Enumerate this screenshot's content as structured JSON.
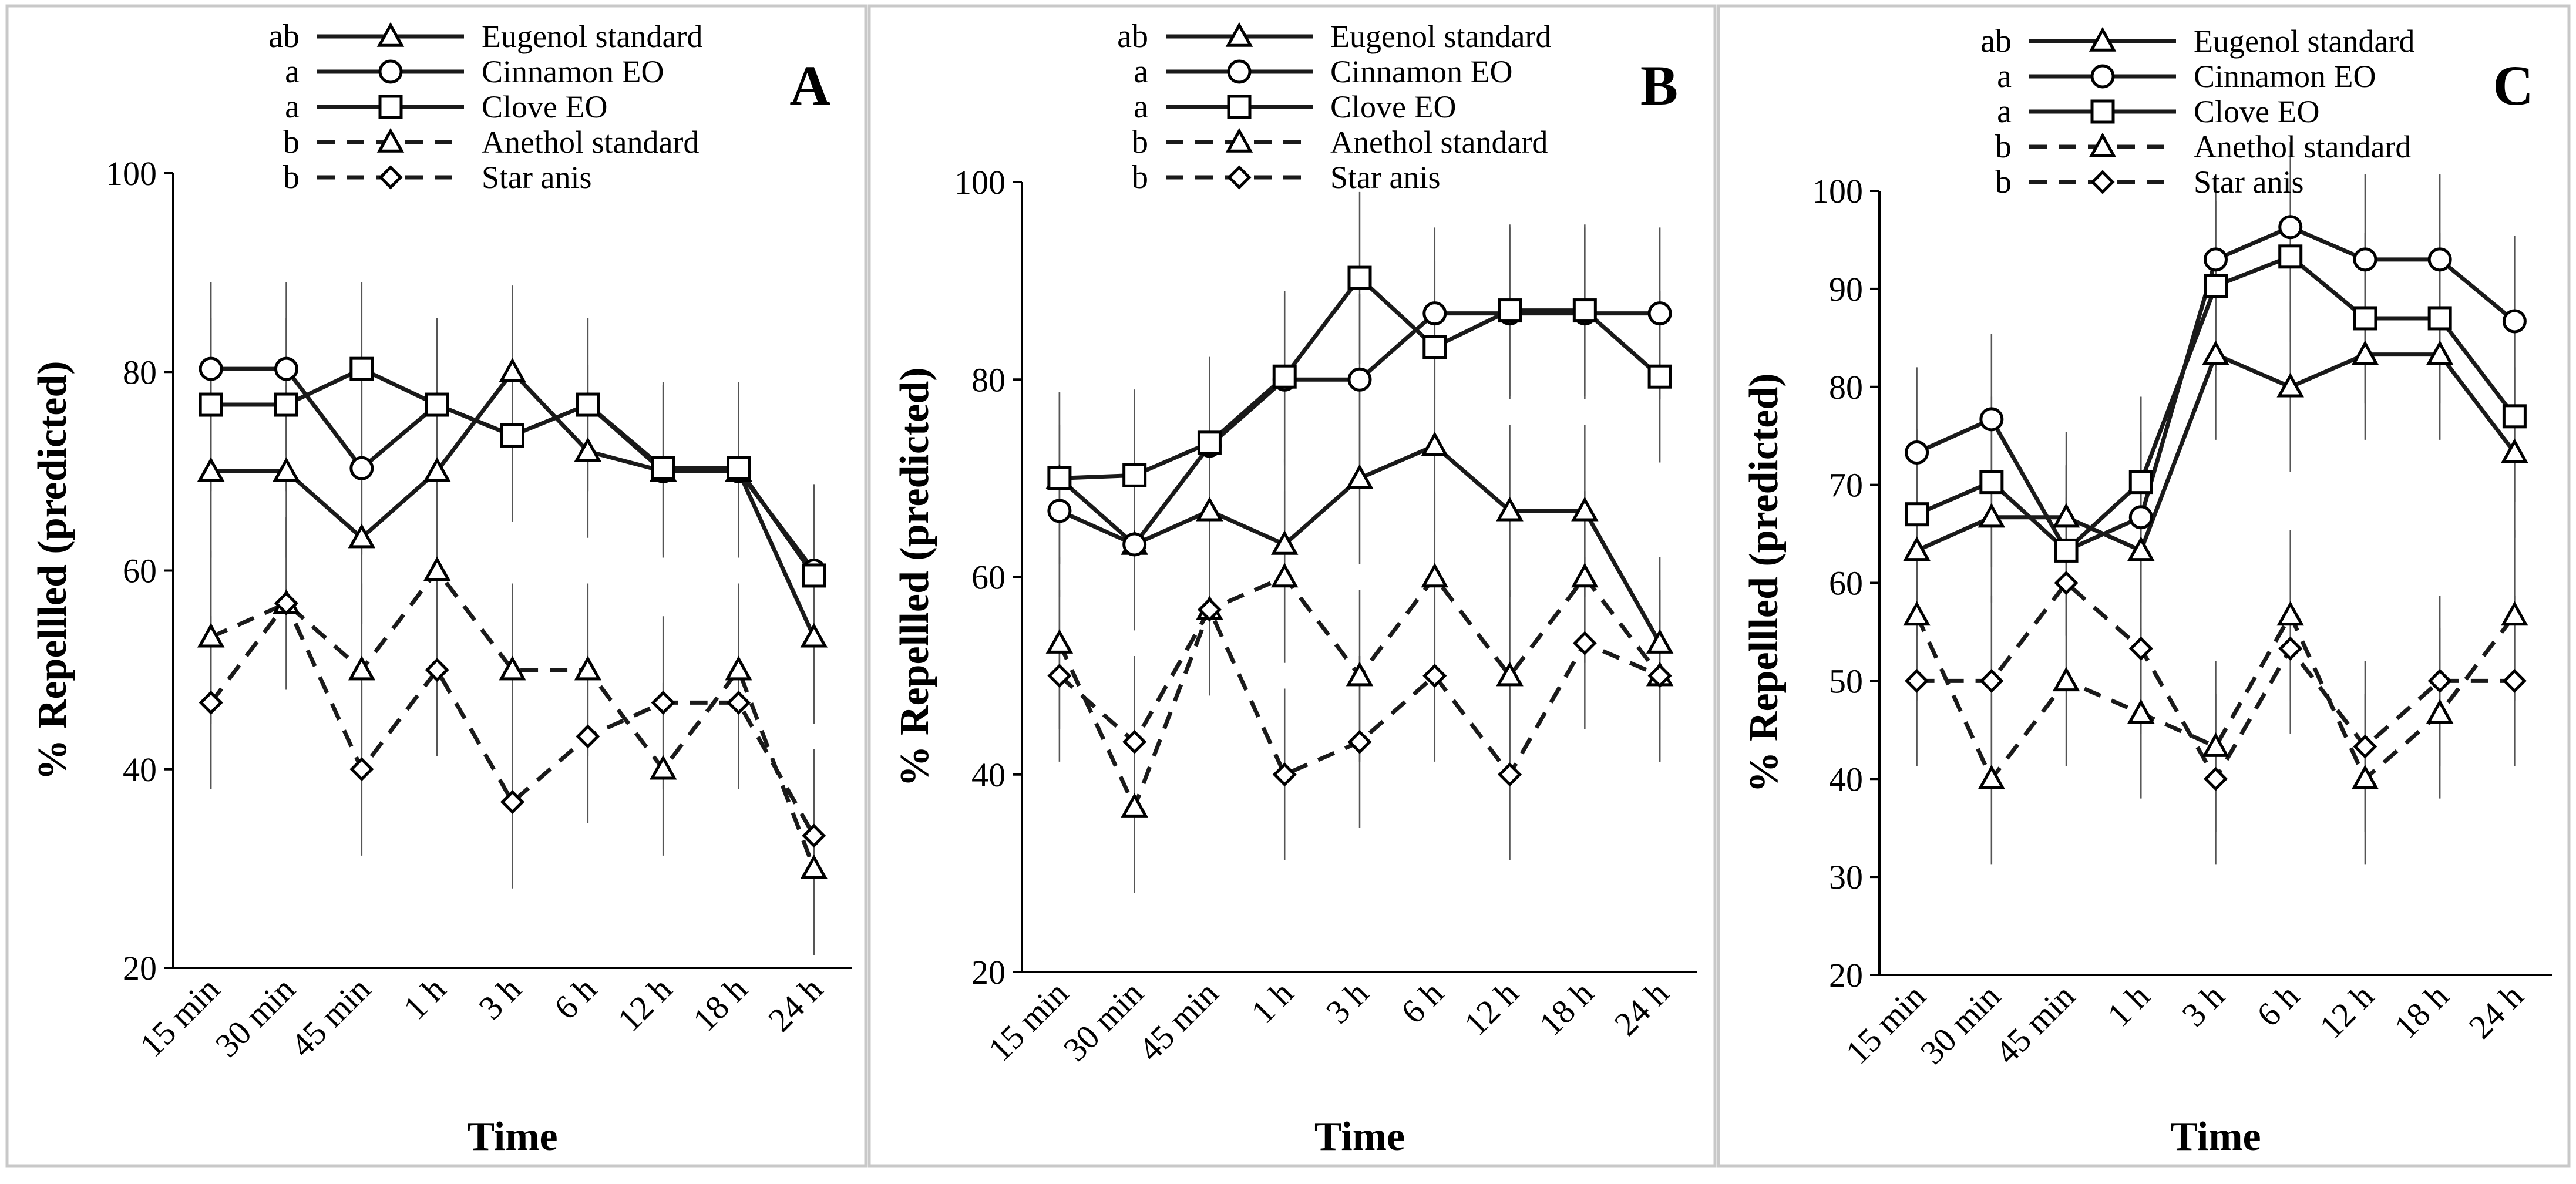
{
  "figure": {
    "xlabel": "Time",
    "ylabel": "% Repellled (predicted)"
  },
  "legend": [
    {
      "group": "ab",
      "label": "Eugenol standard",
      "marker": "triangle",
      "dash": "solid"
    },
    {
      "group": "a",
      "label": "Cinnamon EO",
      "marker": "circle",
      "dash": "solid"
    },
    {
      "group": "a",
      "label": "Clove EO",
      "marker": "square",
      "dash": "solid"
    },
    {
      "group": "b",
      "label": "Anethol standard",
      "marker": "triangle",
      "dash": "dashed"
    },
    {
      "group": "b",
      "label": "Star anis",
      "marker": "diamond",
      "dash": "dashed"
    }
  ],
  "chart_data": [
    {
      "type": "line",
      "panel": "A",
      "title": "",
      "xlabel": "Time",
      "ylabel": "% Repellled (predicted)",
      "categories": [
        "15 min",
        "30 min",
        "45 min",
        "1 h",
        "3 h",
        "6 h",
        "12 h",
        "18 h",
        "24 h"
      ],
      "ylim": [
        20,
        100
      ],
      "yticks": [
        20,
        40,
        60,
        80,
        100
      ],
      "error_bar": 8.7,
      "series": [
        {
          "name": "Eugenol standard",
          "values": [
            70,
            70,
            63.3,
            70,
            80,
            72,
            70,
            70,
            53.3
          ]
        },
        {
          "name": "Cinnamon EO",
          "values": [
            80.3,
            80.3,
            70.3,
            76.7,
            73.6,
            76.7,
            70,
            70,
            60
          ]
        },
        {
          "name": "Clove EO",
          "values": [
            76.7,
            76.7,
            80.3,
            76.7,
            73.6,
            76.7,
            70.3,
            70.3,
            59.5
          ]
        },
        {
          "name": "Anethol standard",
          "values": [
            53.3,
            56.7,
            50,
            60,
            50,
            50,
            40,
            50,
            30
          ]
        },
        {
          "name": "Star anis",
          "values": [
            46.7,
            56.7,
            40,
            50,
            36.7,
            43.3,
            46.7,
            46.7,
            33.3
          ]
        }
      ]
    },
    {
      "type": "line",
      "panel": "B",
      "title": "",
      "xlabel": "Time",
      "ylabel": "% Repellled (predicted)",
      "categories": [
        "15 min",
        "30 min",
        "45 min",
        "1 h",
        "3 h",
        "6 h",
        "12 h",
        "18 h",
        "24 h"
      ],
      "ylim": [
        20,
        100
      ],
      "yticks": [
        20,
        40,
        60,
        80,
        100
      ],
      "error_bar": 8.7,
      "series": [
        {
          "name": "Eugenol standard",
          "values": [
            70,
            63.3,
            66.7,
            63.3,
            70,
            73.3,
            66.7,
            66.7,
            53.3
          ]
        },
        {
          "name": "Cinnamon EO",
          "values": [
            66.7,
            63.3,
            73.3,
            80,
            80,
            86.7,
            86.7,
            86.7,
            86.7
          ]
        },
        {
          "name": "Clove EO",
          "values": [
            70,
            70.3,
            73.6,
            80.3,
            90.3,
            83.3,
            87,
            87,
            80.3
          ]
        },
        {
          "name": "Anethol standard",
          "values": [
            53.3,
            36.7,
            56.7,
            60,
            50,
            60,
            50,
            60,
            50
          ]
        },
        {
          "name": "Star anis",
          "values": [
            50,
            43.3,
            56.7,
            40,
            43.3,
            50,
            40,
            53.3,
            50
          ]
        }
      ]
    },
    {
      "type": "line",
      "panel": "C",
      "title": "",
      "xlabel": "Time",
      "ylabel": "% Repellled (predicted)",
      "categories": [
        "15 min",
        "30 min",
        "45 min",
        "1 h",
        "3 h",
        "6 h",
        "12 h",
        "18 h",
        "24 h"
      ],
      "ylim": [
        20,
        100
      ],
      "yticks": [
        20,
        30,
        40,
        50,
        60,
        70,
        80,
        90,
        100
      ],
      "error_bar": 8.7,
      "series": [
        {
          "name": "Eugenol standard",
          "values": [
            63.3,
            66.7,
            66.7,
            63.3,
            83.3,
            80,
            83.3,
            83.3,
            73.3
          ]
        },
        {
          "name": "Cinnamon EO",
          "values": [
            73.3,
            76.7,
            63.3,
            66.7,
            93,
            96.3,
            93,
            93,
            86.7
          ]
        },
        {
          "name": "Clove EO",
          "values": [
            67,
            70.3,
            63.3,
            70.3,
            90.3,
            93.3,
            87,
            87,
            77
          ]
        },
        {
          "name": "Anethol standard",
          "values": [
            56.7,
            40,
            50,
            46.7,
            43.3,
            56.7,
            40,
            46.7,
            56.7
          ]
        },
        {
          "name": "Star anis",
          "values": [
            50,
            50,
            60,
            53.3,
            40,
            53.3,
            43.3,
            50,
            50
          ]
        }
      ]
    }
  ]
}
